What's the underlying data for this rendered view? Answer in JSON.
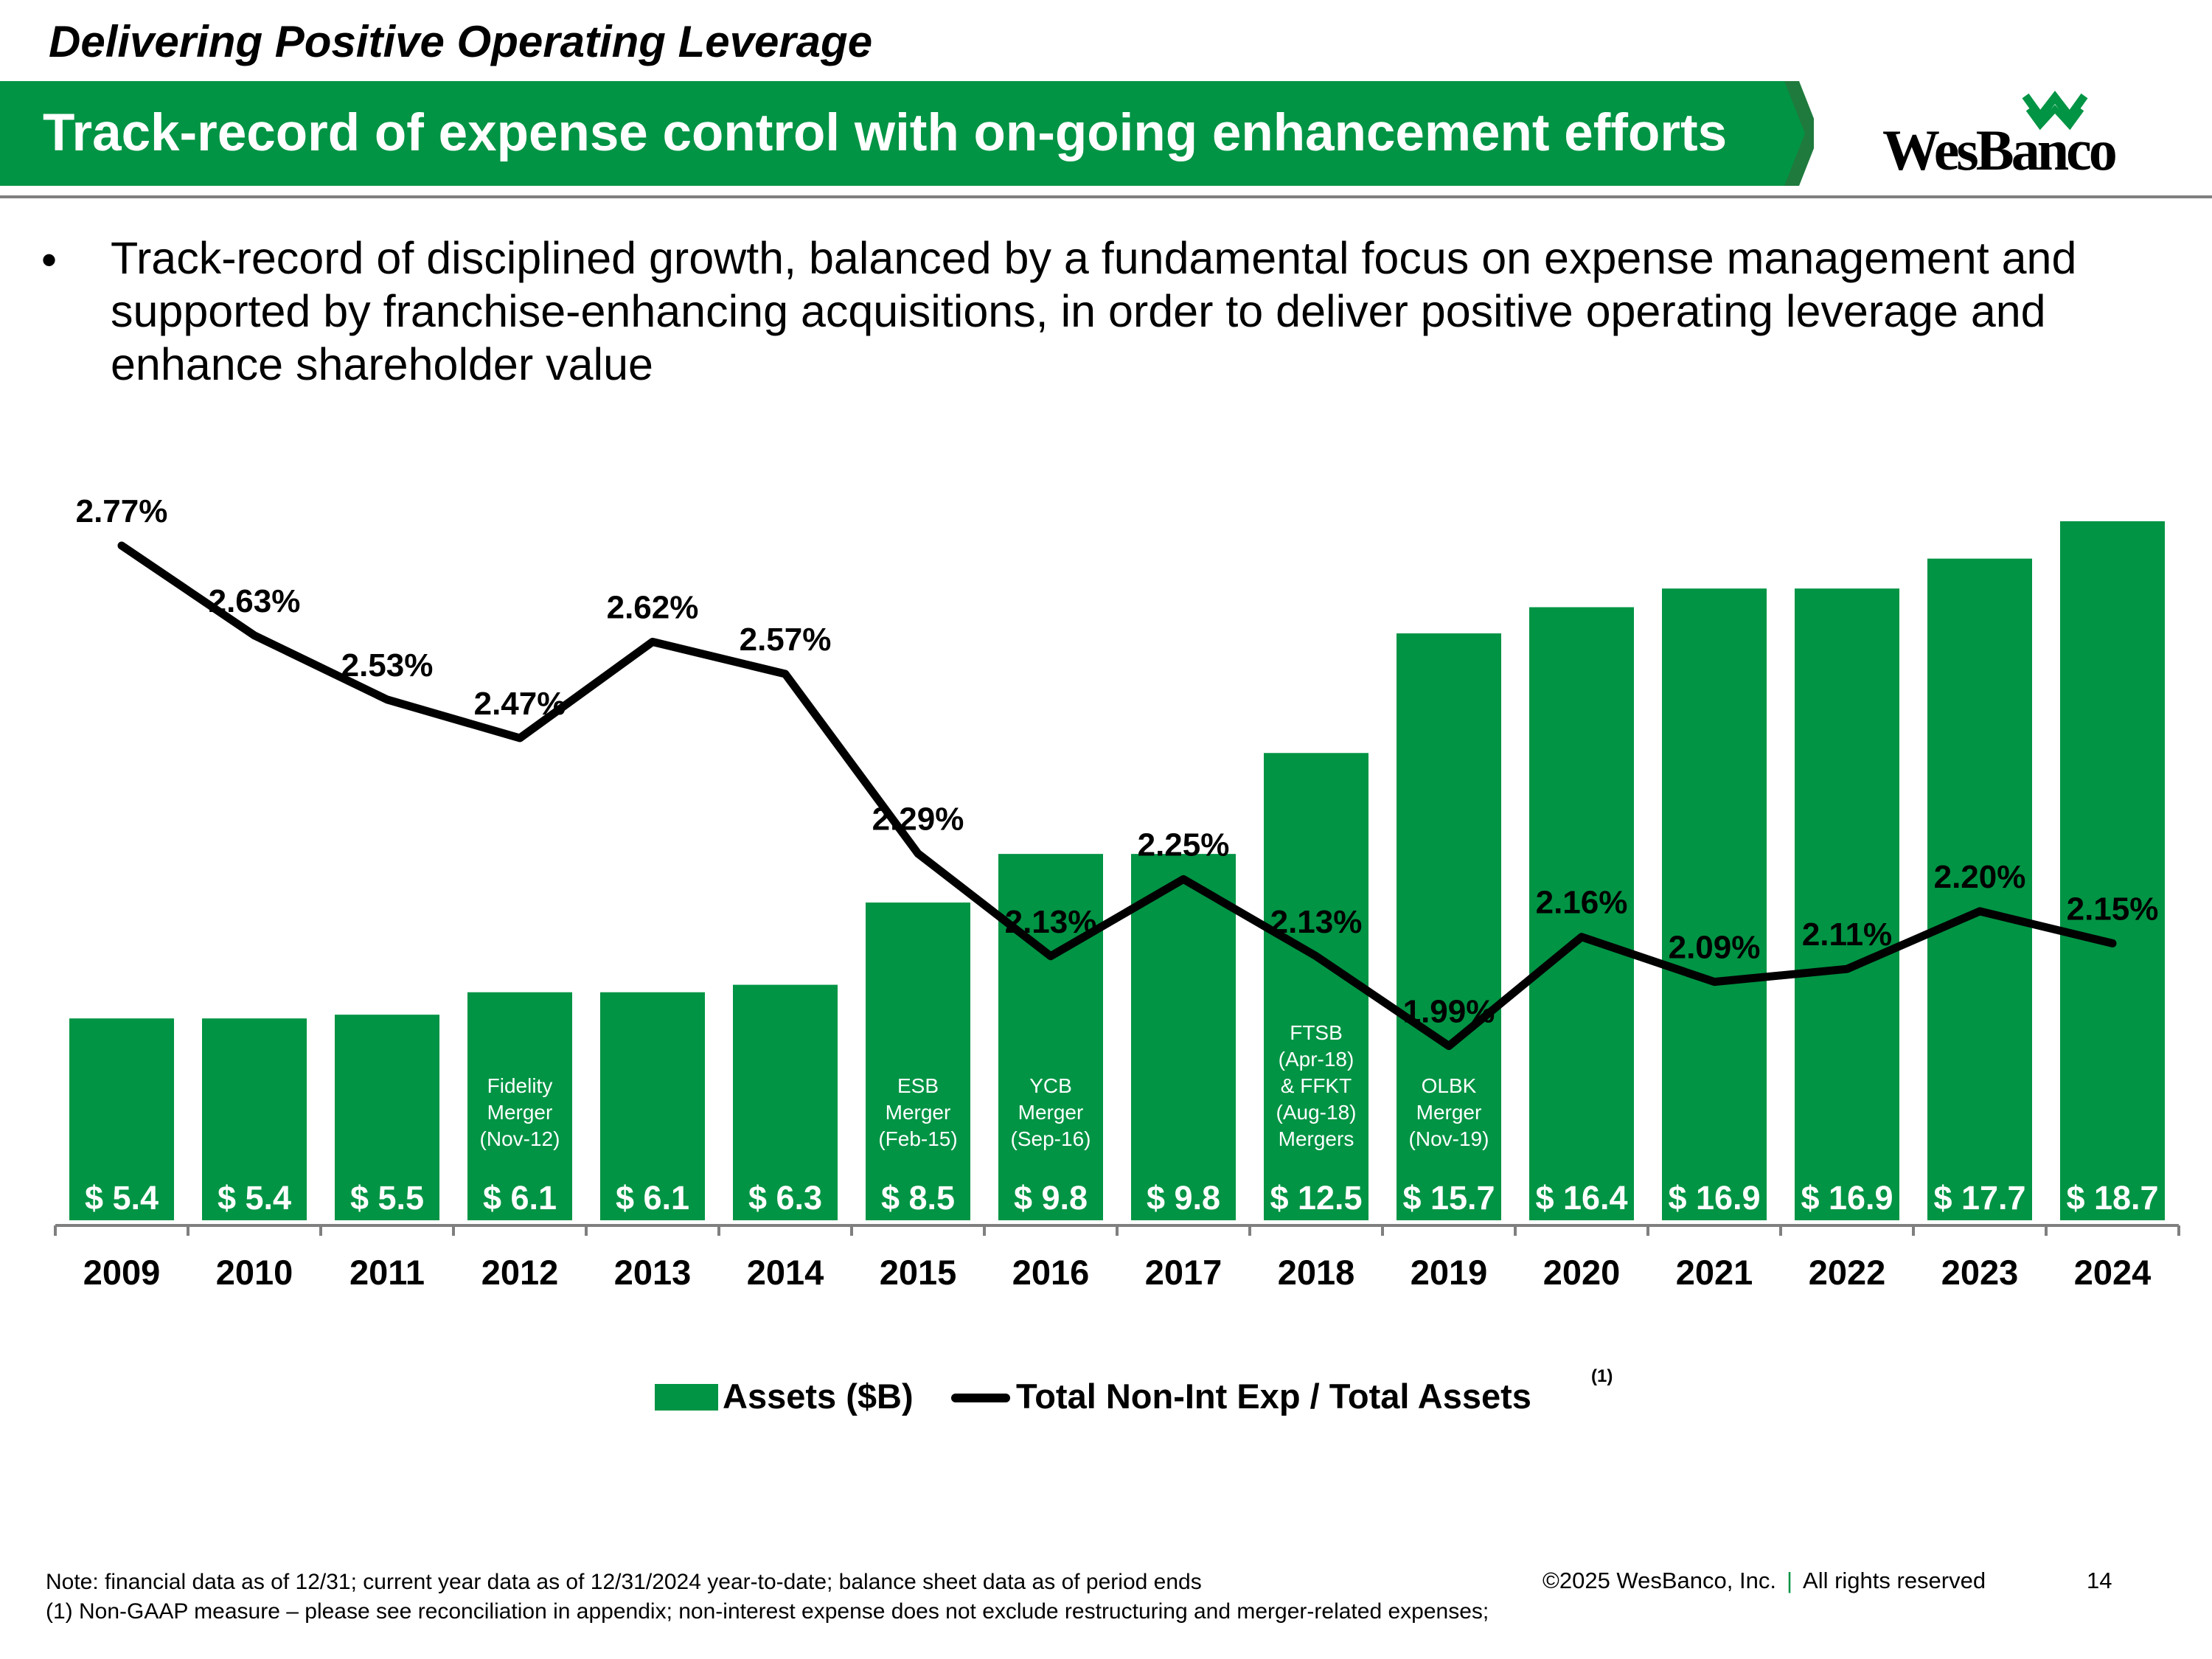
{
  "header": {
    "section_title": "Delivering Positive Operating Leverage",
    "banner_title": "Track-record of expense control with on-going enhancement efforts",
    "logo_text": "WesBanco"
  },
  "bullet": {
    "text": "Track-record of disciplined growth, balanced by a fundamental focus on expense management and supported by franchise-enhancing acquisitions, in order to deliver positive operating leverage and enhance shareholder value"
  },
  "chart_data": {
    "type": "bar",
    "categories": [
      "2009",
      "2010",
      "2011",
      "2012",
      "2013",
      "2014",
      "2015",
      "2016",
      "2017",
      "2018",
      "2019",
      "2020",
      "2021",
      "2022",
      "2023",
      "2024"
    ],
    "series": [
      {
        "name": "Assets ($B)",
        "type": "bar",
        "values": [
          5.4,
          5.4,
          5.5,
          6.1,
          6.1,
          6.3,
          8.5,
          9.8,
          9.8,
          12.5,
          15.7,
          16.4,
          16.9,
          16.9,
          17.7,
          18.7
        ],
        "labels": [
          "$ 5.4",
          "$ 5.4",
          "$ 5.5",
          "$ 6.1",
          "$ 6.1",
          "$ 6.3",
          "$ 8.5",
          "$ 9.8",
          "$ 9.8",
          "$ 12.5",
          "$ 15.7",
          "$ 16.4",
          "$ 16.9",
          "$ 16.9",
          "$ 17.7",
          "$ 18.7"
        ],
        "color": "#009444"
      },
      {
        "name": "Total Non-Int Exp / Total Assets",
        "type": "line",
        "values": [
          2.77,
          2.63,
          2.53,
          2.47,
          2.62,
          2.57,
          2.29,
          2.13,
          2.25,
          2.13,
          1.99,
          2.16,
          2.09,
          2.11,
          2.2,
          2.15
        ],
        "labels": [
          "2.77%",
          "2.63%",
          "2.53%",
          "2.47%",
          "2.62%",
          "2.57%",
          "2.29%",
          "2.13%",
          "2.25%",
          "2.13%",
          "1.99%",
          "2.16%",
          "2.09%",
          "2.11%",
          "2.20%",
          "2.15%"
        ],
        "color": "#000000"
      }
    ],
    "bar_annotations": [
      {
        "year": "2012",
        "lines": [
          "Fidelity",
          "Merger",
          "(Nov-12)"
        ]
      },
      {
        "year": "2015",
        "lines": [
          "ESB",
          "Merger",
          "(Feb-15)"
        ]
      },
      {
        "year": "2016",
        "lines": [
          "YCB",
          "Merger",
          "(Sep-16)"
        ]
      },
      {
        "year": "2018",
        "lines": [
          "FTSB",
          "(Apr-18)",
          "& FFKT",
          "(Aug-18)",
          "Mergers"
        ]
      },
      {
        "year": "2019",
        "lines": [
          "OLBK",
          "Merger",
          "(Nov-19)"
        ]
      }
    ],
    "legend": {
      "position": "bottom",
      "note": "(1)"
    },
    "grid": false
  },
  "footer": {
    "note_line1": "Note: financial data as of 12/31; current year data as of 12/31/2024 year-to-date; balance sheet data as of period ends",
    "note_line2": "(1) Non-GAAP measure – please see reconciliation in appendix; non-interest expense does not exclude restructuring and merger-related expenses;",
    "copyright": "©2025 WesBanco, Inc.",
    "separator": "|",
    "rights": "All rights reserved",
    "page_number": "14"
  },
  "colors": {
    "brand_green": "#009444",
    "dark_green": "#1f7a3d",
    "line": "#000000"
  }
}
